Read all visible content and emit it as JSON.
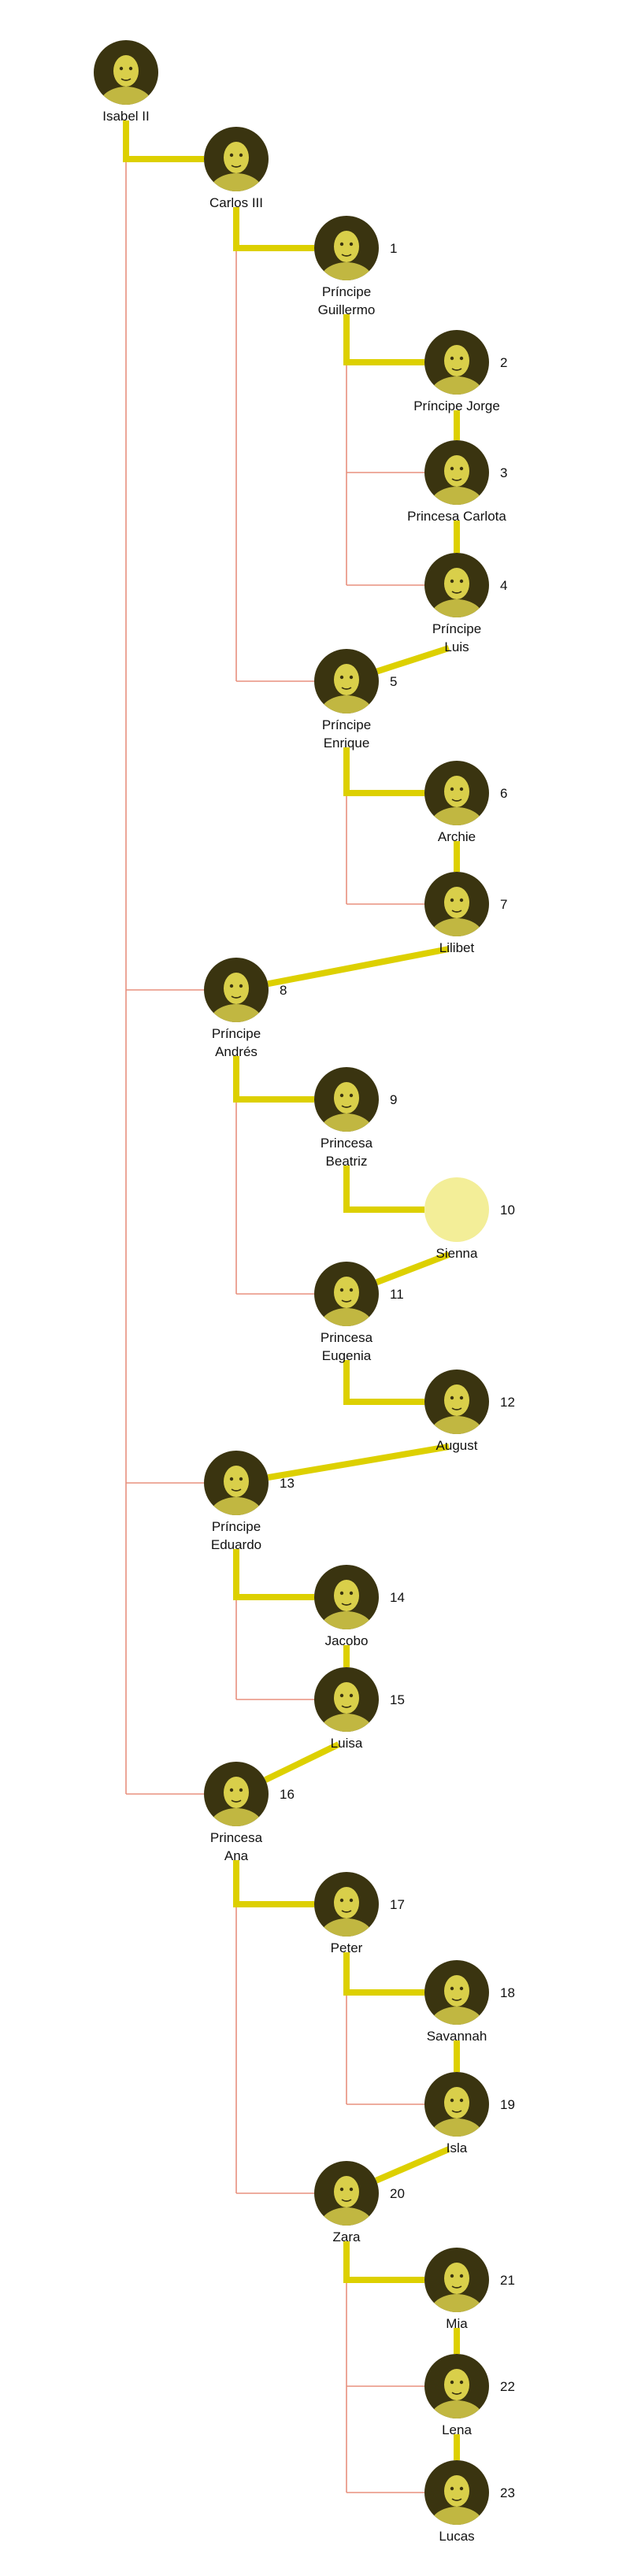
{
  "colors": {
    "thick_line": "#ddd000",
    "thin_line": "#e8907e",
    "portrait_tint": "#d9cf4a",
    "portrait_dark": "#3a3410",
    "empty_portrait": "#f3ee98",
    "text": "#111111"
  },
  "people": [
    {
      "id": "isabel",
      "label": [
        "Isabel II"
      ],
      "rank": "",
      "portrait": "portrait-icon"
    },
    {
      "id": "carlos",
      "label": [
        "Carlos III"
      ],
      "rank": "",
      "portrait": "portrait-icon"
    },
    {
      "id": "guillermo",
      "label": [
        "Príncipe",
        "Guillermo"
      ],
      "rank": "1",
      "portrait": "portrait-icon"
    },
    {
      "id": "jorge",
      "label": [
        "Príncipe Jorge"
      ],
      "rank": "2",
      "portrait": "portrait-icon"
    },
    {
      "id": "carlota",
      "label": [
        "Princesa Carlota"
      ],
      "rank": "3",
      "portrait": "portrait-icon"
    },
    {
      "id": "luis",
      "label": [
        "Príncipe",
        "Luis"
      ],
      "rank": "4",
      "portrait": "portrait-icon"
    },
    {
      "id": "enrique",
      "label": [
        "Príncipe",
        "Enrique"
      ],
      "rank": "5",
      "portrait": "portrait-icon"
    },
    {
      "id": "archie",
      "label": [
        "Archie"
      ],
      "rank": "6",
      "portrait": "portrait-icon"
    },
    {
      "id": "lilibet",
      "label": [
        "Lilibet"
      ],
      "rank": "7",
      "portrait": "portrait-icon"
    },
    {
      "id": "andres",
      "label": [
        "Príncipe",
        "Andrés"
      ],
      "rank": "8",
      "portrait": "portrait-icon"
    },
    {
      "id": "beatriz",
      "label": [
        "Princesa",
        "Beatriz"
      ],
      "rank": "9",
      "portrait": "portrait-icon"
    },
    {
      "id": "sienna",
      "label": [
        "Sienna"
      ],
      "rank": "10",
      "portrait": "empty-portrait-icon"
    },
    {
      "id": "eugenia",
      "label": [
        "Princesa",
        "Eugenia"
      ],
      "rank": "11",
      "portrait": "portrait-icon"
    },
    {
      "id": "august",
      "label": [
        "August"
      ],
      "rank": "12",
      "portrait": "portrait-icon"
    },
    {
      "id": "eduardo",
      "label": [
        "Príncipe",
        "Eduardo"
      ],
      "rank": "13",
      "portrait": "portrait-icon"
    },
    {
      "id": "jacobo",
      "label": [
        "Jacobo"
      ],
      "rank": "14",
      "portrait": "portrait-icon"
    },
    {
      "id": "luisa",
      "label": [
        "Luisa"
      ],
      "rank": "15",
      "portrait": "portrait-icon"
    },
    {
      "id": "ana",
      "label": [
        "Princesa",
        "Ana"
      ],
      "rank": "16",
      "portrait": "portrait-icon"
    },
    {
      "id": "peter",
      "label": [
        "Peter"
      ],
      "rank": "17",
      "portrait": "portrait-icon"
    },
    {
      "id": "savannah",
      "label": [
        "Savannah"
      ],
      "rank": "18",
      "portrait": "portrait-icon"
    },
    {
      "id": "isla",
      "label": [
        "Isla"
      ],
      "rank": "19",
      "portrait": "portrait-icon"
    },
    {
      "id": "zara",
      "label": [
        "Zara"
      ],
      "rank": "20",
      "portrait": "portrait-icon"
    },
    {
      "id": "mia",
      "label": [
        "Mia"
      ],
      "rank": "21",
      "portrait": "portrait-icon"
    },
    {
      "id": "lena",
      "label": [
        "Lena"
      ],
      "rank": "22",
      "portrait": "portrait-icon"
    },
    {
      "id": "lucas",
      "label": [
        "Lucas"
      ],
      "rank": "23",
      "portrait": "portrait-icon"
    }
  ],
  "succession_order": [
    "isabel",
    "carlos",
    "guillermo",
    "jorge",
    "carlota",
    "luis",
    "enrique",
    "archie",
    "lilibet",
    "andres",
    "beatriz",
    "sienna",
    "eugenia",
    "august",
    "eduardo",
    "jacobo",
    "luisa",
    "ana",
    "peter",
    "savannah",
    "isla",
    "zara",
    "mia",
    "lena",
    "lucas"
  ],
  "parent_child": [
    [
      "isabel",
      "carlos"
    ],
    [
      "isabel",
      "andres"
    ],
    [
      "isabel",
      "eduardo"
    ],
    [
      "isabel",
      "ana"
    ],
    [
      "carlos",
      "guillermo"
    ],
    [
      "carlos",
      "enrique"
    ],
    [
      "guillermo",
      "jorge"
    ],
    [
      "guillermo",
      "carlota"
    ],
    [
      "guillermo",
      "luis"
    ],
    [
      "enrique",
      "archie"
    ],
    [
      "enrique",
      "lilibet"
    ],
    [
      "andres",
      "beatriz"
    ],
    [
      "andres",
      "eugenia"
    ],
    [
      "beatriz",
      "sienna"
    ],
    [
      "eugenia",
      "august"
    ],
    [
      "eduardo",
      "jacobo"
    ],
    [
      "eduardo",
      "luisa"
    ],
    [
      "ana",
      "peter"
    ],
    [
      "ana",
      "zara"
    ],
    [
      "peter",
      "savannah"
    ],
    [
      "peter",
      "isla"
    ],
    [
      "zara",
      "mia"
    ],
    [
      "zara",
      "lena"
    ],
    [
      "zara",
      "lucas"
    ]
  ]
}
